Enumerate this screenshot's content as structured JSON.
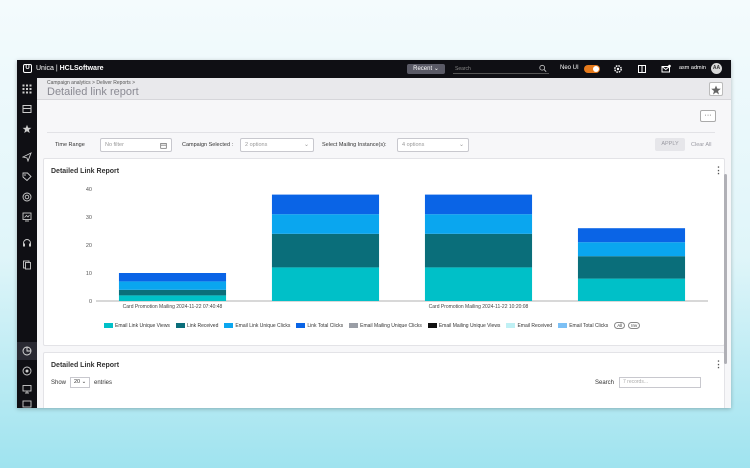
{
  "topbar": {
    "logo_glyph": "U",
    "brand_prefix": "Unica | ",
    "brand_name": "HCLSoftware",
    "recent_label": "Recent ⌄",
    "search_placeholder": "Search",
    "neo_label": "Neo UI",
    "user_name": "asm admin",
    "avatar_initials": "AA"
  },
  "header": {
    "breadcrumb": "Campaign analytics >   Deliver Reports >",
    "title": "Detailed link report"
  },
  "more_button_label": "···",
  "filters": {
    "time_range_label": "Time Range",
    "time_range_placeholder": "No filter",
    "campaign_label": "Campaign Selected :",
    "campaign_value": "2 options",
    "mailing_label": "Select Mailing Instance(s):",
    "mailing_value": "4 options",
    "apply_label": "APPLY",
    "clear_label": "Clear All"
  },
  "chart_card": {
    "title": "Detailed Link Report",
    "kebab": "⋮"
  },
  "chart_data": {
    "type": "bar",
    "stacked": true,
    "title": "Detailed Link Report",
    "categories": [
      "Card Promotion Mailing 2024-11-22 07:40:48",
      "",
      "Card Promotion Mailing 2024-11-22 10:20:08",
      ""
    ],
    "ylim": [
      0,
      40
    ],
    "yticks": [
      0,
      10,
      20,
      30,
      40
    ],
    "grid": false,
    "legend_position": "bottom",
    "series": [
      {
        "name": "Email Link Unique Views",
        "color": "#00c0c8",
        "values": [
          2,
          12,
          12,
          8
        ]
      },
      {
        "name": "Link Received",
        "color": "#0a6e7a",
        "values": [
          2,
          12,
          12,
          8
        ]
      },
      {
        "name": "Email Link Unique Clicks",
        "color": "#0aa6ef",
        "values": [
          3,
          7,
          7,
          5
        ]
      },
      {
        "name": "Link Total Clicks",
        "color": "#0a64e6",
        "values": [
          3,
          7,
          7,
          5
        ]
      },
      {
        "name": "Email Mailing Unique Clicks",
        "color": "#9a9ea6",
        "values": [
          0,
          0,
          0,
          0
        ]
      },
      {
        "name": "Email Mailing Unique Views",
        "color": "#111111",
        "values": [
          0,
          0,
          0,
          0
        ]
      },
      {
        "name": "Email Received",
        "color": "#bff0f4",
        "values": [
          0,
          0,
          0,
          0
        ]
      },
      {
        "name": "Email Total Clicks",
        "color": "#7cc0f5",
        "values": [
          0,
          0,
          0,
          0
        ]
      }
    ],
    "legend_pills": [
      "All",
      "Inv"
    ]
  },
  "table_card": {
    "title": "Detailed Link Report",
    "kebab": "⋮",
    "show_label": "Show",
    "page_size": "20",
    "entries_label": "entries",
    "search_label": "Search",
    "search_placeholder": "7 records..."
  }
}
